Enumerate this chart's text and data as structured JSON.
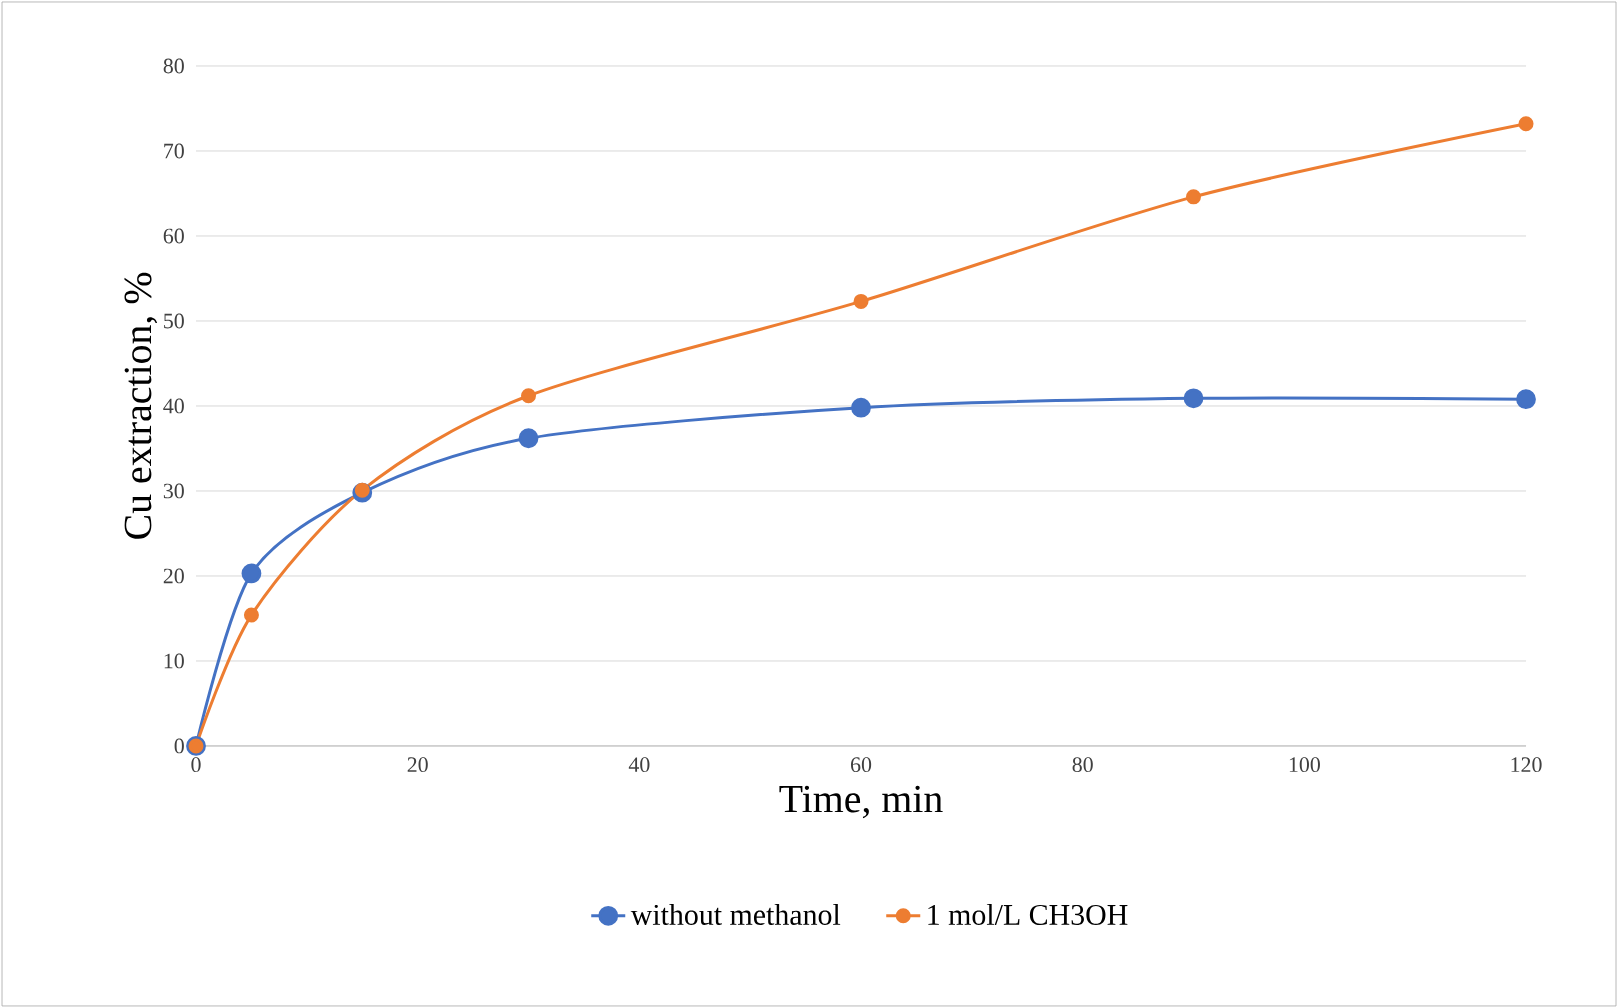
{
  "chart_data": {
    "type": "line",
    "xlabel": "Time, min",
    "ylabel": "Cu extraction, %",
    "x": [
      0,
      5,
      15,
      30,
      60,
      90,
      120
    ],
    "series": [
      {
        "name": "without methanol",
        "color": "#4472c4",
        "values": [
          0,
          20.3,
          29.8,
          36.2,
          39.8,
          40.9,
          40.8
        ]
      },
      {
        "name": "1 mol/L CH3OH",
        "color": "#ed7d31",
        "values": [
          0,
          15.4,
          30.1,
          41.2,
          52.3,
          64.6,
          73.2
        ]
      }
    ],
    "xlim": [
      0,
      120
    ],
    "ylim": [
      0,
      80
    ],
    "xticks": [
      0,
      20,
      40,
      60,
      80,
      100,
      120
    ],
    "yticks": [
      0,
      10,
      20,
      30,
      40,
      50,
      60,
      70,
      80
    ],
    "grid": "y",
    "legend": "bottom",
    "marker": "circle"
  }
}
